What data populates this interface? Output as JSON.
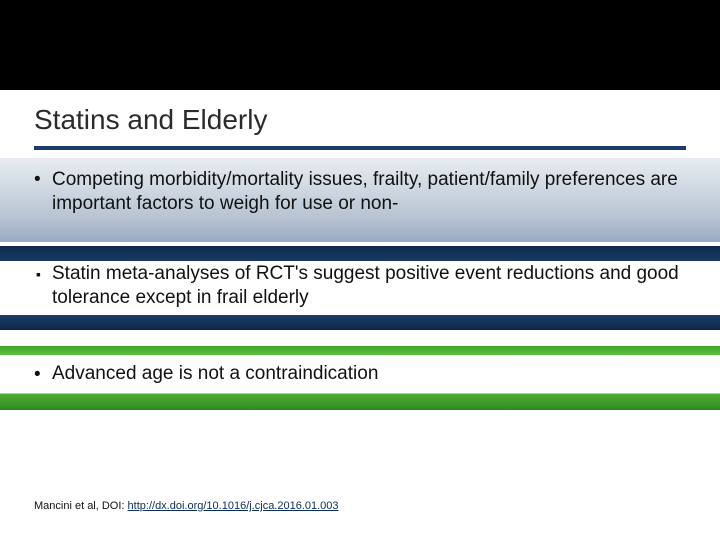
{
  "title": "Statins and Elderly",
  "bullets": [
    "Competing morbidity/mortality issues, frailty, patient/family preferences are important factors to weigh for use or non-",
    "Statin meta-analyses of RCT's suggest positive event reductions and good tolerance except in frail elderly",
    "Advanced age is not a contraindication"
  ],
  "citation_prefix": "Mancini et al, DOI: ",
  "citation_doi": "http://dx.doi.org/10.1016/j.cjca.2016.01.003",
  "bands": {
    "b1_gradient_top": "#e9edf2",
    "b1_gradient_bottom": "#9aabc1",
    "b2_color": "#183a64",
    "b3_color": "#4fae33",
    "title_rule_color": "#1b3d6d",
    "top_band_color": "#000000"
  }
}
